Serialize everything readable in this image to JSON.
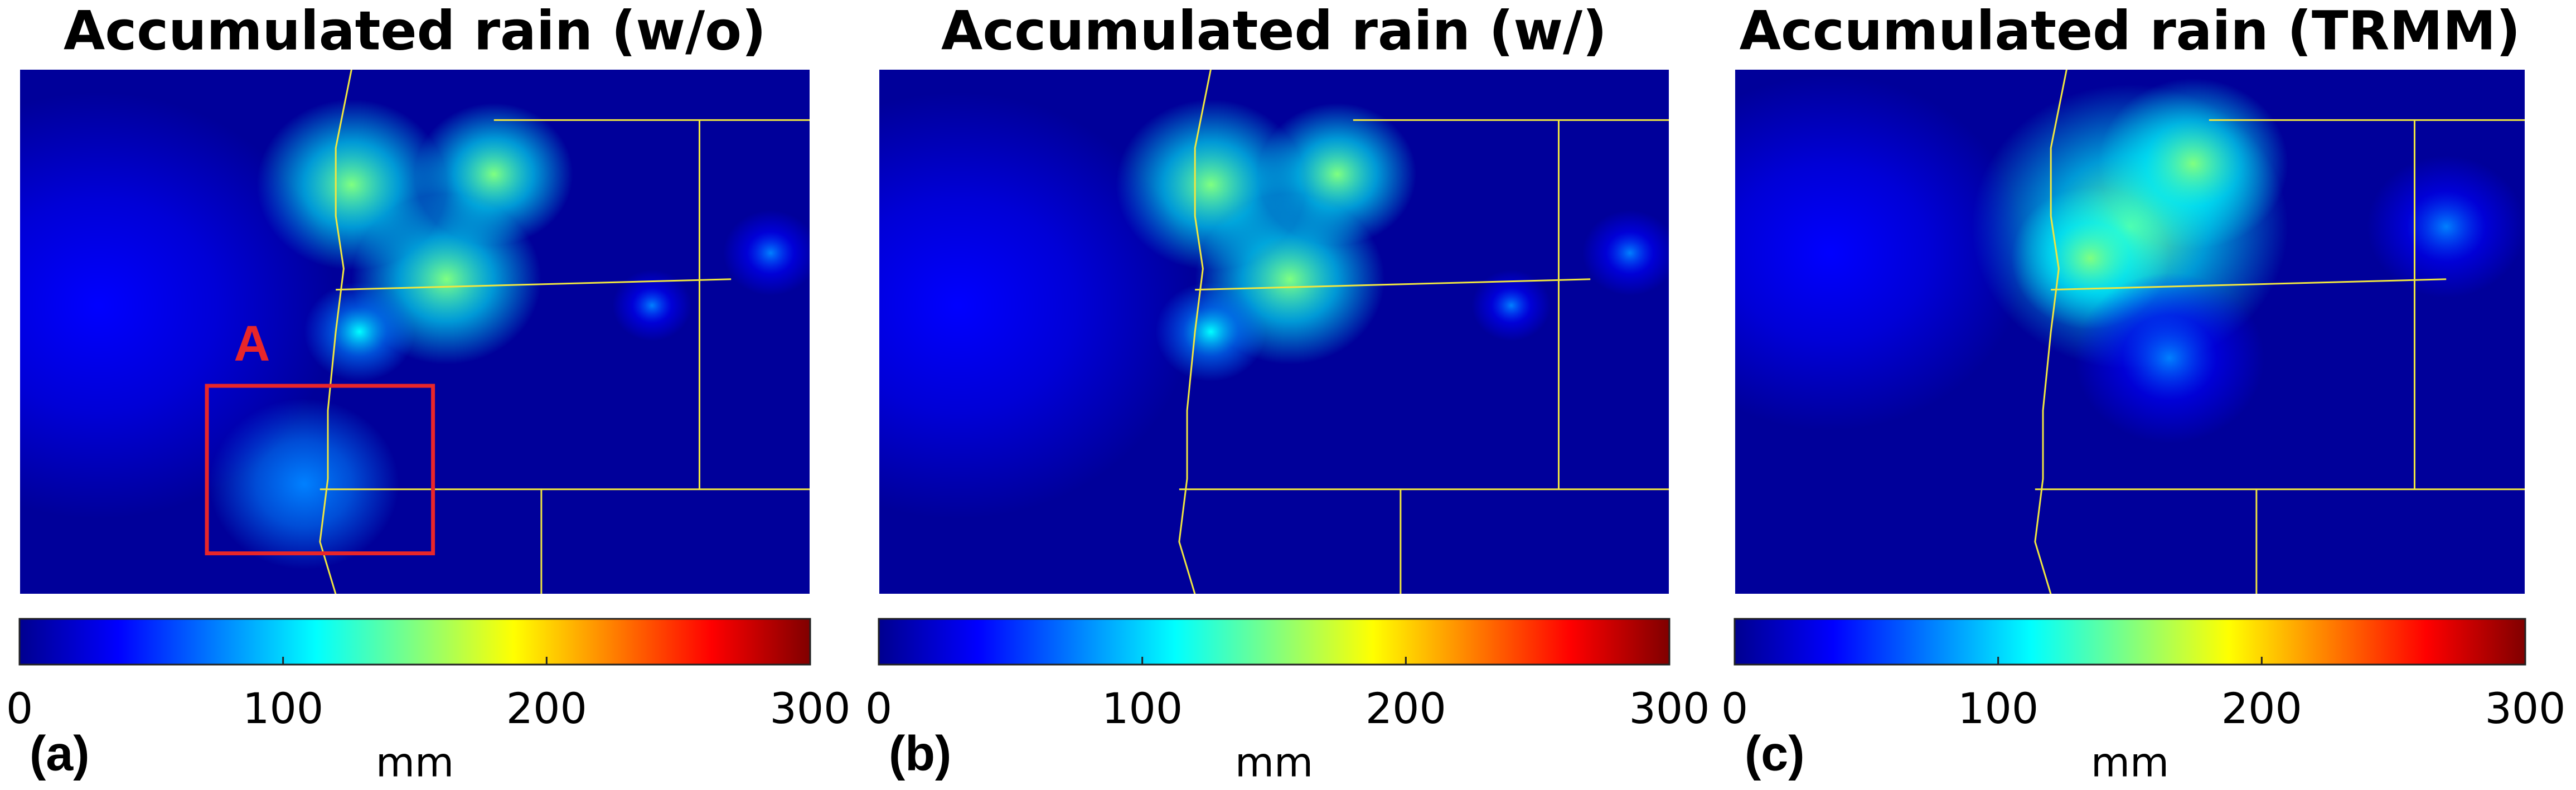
{
  "chart_data": [
    {
      "type": "heatmap",
      "title": "Accumulated rain  (w/o)",
      "panel_label": "(a)",
      "annotation": "A",
      "colorbar": {
        "colormap": "jet",
        "clim": [
          0,
          300
        ],
        "ticks": [
          0,
          100,
          200,
          300
        ],
        "label": "mm"
      }
    },
    {
      "type": "heatmap",
      "title": "Accumulated rain  (w/)",
      "panel_label": "(b)",
      "colorbar": {
        "colormap": "jet",
        "clim": [
          0,
          300
        ],
        "ticks": [
          0,
          100,
          200,
          300
        ],
        "label": "mm"
      }
    },
    {
      "type": "heatmap",
      "title": "Accumulated rain (TRMM)",
      "panel_label": "(c)",
      "colorbar": {
        "colormap": "jet",
        "clim": [
          0,
          300
        ],
        "ticks": [
          0,
          100,
          200,
          300
        ],
        "label": "mm"
      }
    }
  ]
}
